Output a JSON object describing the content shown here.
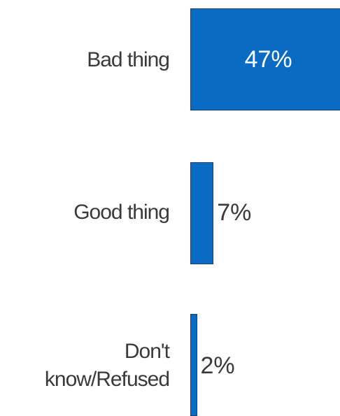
{
  "chart_data": {
    "type": "bar",
    "orientation": "horizontal",
    "categories": [
      "Bad thing",
      "Good thing",
      "Don't know/Refused"
    ],
    "values": [
      47,
      7,
      2
    ],
    "value_labels": [
      "47%",
      "7%",
      "2%"
    ],
    "bar_color": "#0a6bc2",
    "label_color": "#3a3a3a",
    "xlim": [
      0,
      100
    ],
    "grid": false,
    "legend": "none"
  }
}
